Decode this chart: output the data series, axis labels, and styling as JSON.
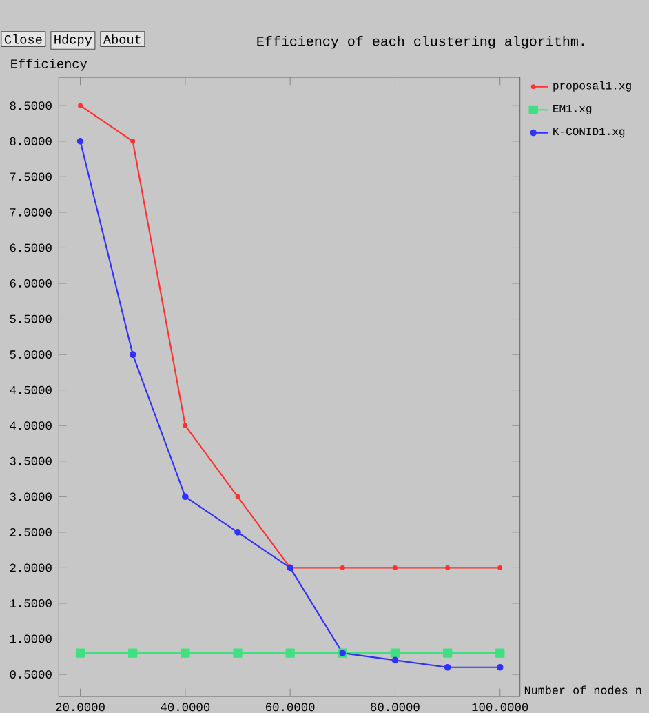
{
  "chart_data": {
    "type": "line",
    "title": "Efficiency of each clustering algorithm.",
    "xlabel": "Number of nodes n",
    "ylabel": "Efficiency",
    "annotations": [
      "Close",
      "Hdcpy",
      "About"
    ],
    "x": [
      20,
      30,
      40,
      50,
      60,
      70,
      80,
      90,
      100
    ],
    "xlim": [
      15.9,
      103.8
    ],
    "ylim": [
      0.19,
      8.9
    ],
    "xticks": [
      {
        "value": 20,
        "label": "20.0000"
      },
      {
        "value": 40,
        "label": "40.0000"
      },
      {
        "value": 60,
        "label": "60.0000"
      },
      {
        "value": 80,
        "label": "80.0000"
      },
      {
        "value": 100,
        "label": "100.0000"
      }
    ],
    "yticks": [
      {
        "value": 0.5,
        "label": "0.5000"
      },
      {
        "value": 1,
        "label": "1.0000"
      },
      {
        "value": 1.5,
        "label": "1.5000"
      },
      {
        "value": 2,
        "label": "2.0000"
      },
      {
        "value": 2.5,
        "label": "2.5000"
      },
      {
        "value": 3,
        "label": "3.0000"
      },
      {
        "value": 3.5,
        "label": "3.5000"
      },
      {
        "value": 4,
        "label": "4.0000"
      },
      {
        "value": 4.5,
        "label": "4.5000"
      },
      {
        "value": 5,
        "label": "5.0000"
      },
      {
        "value": 5.5,
        "label": "5.5000"
      },
      {
        "value": 6,
        "label": "6.0000"
      },
      {
        "value": 6.5,
        "label": "6.5000"
      },
      {
        "value": 7,
        "label": "7.0000"
      },
      {
        "value": 7.5,
        "label": "7.5000"
      },
      {
        "value": 8,
        "label": "8.0000"
      },
      {
        "value": 8.5,
        "label": "8.5000"
      }
    ],
    "grid": false,
    "legend": "top right",
    "line_style": "solid",
    "series": [
      {
        "name": "proposal1.xg",
        "color": "#ff3030",
        "marker": "circle",
        "values": [
          8.5,
          8.0,
          4.0,
          3.0,
          2.0,
          2.0,
          2.0,
          2.0,
          2.0
        ]
      },
      {
        "name": "EM1.xg",
        "color": "#40e080",
        "marker": "square",
        "values": [
          0.8,
          0.8,
          0.8,
          0.8,
          0.8,
          0.8,
          0.8,
          0.8,
          0.8
        ]
      },
      {
        "name": "K-CONID1.xg",
        "color": "#3030ff",
        "marker": "circle",
        "values": [
          8.0,
          5.0,
          3.0,
          2.5,
          2.0,
          0.8,
          0.7,
          0.6,
          0.6
        ]
      }
    ]
  }
}
